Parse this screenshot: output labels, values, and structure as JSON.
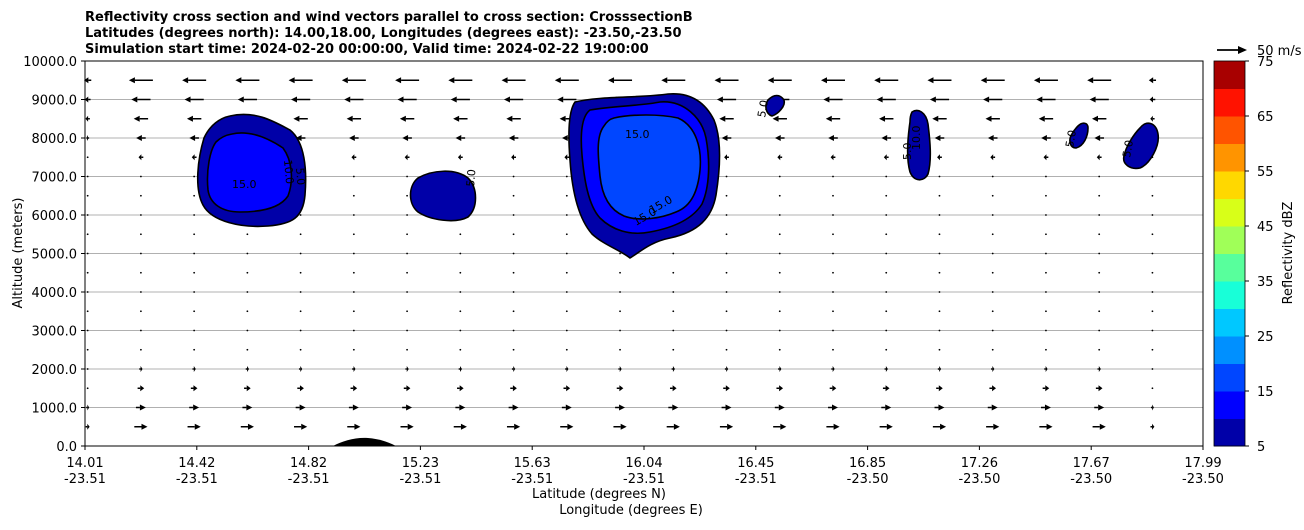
{
  "chart_data": {
    "type": "cross-section contour with wind vectors",
    "title_lines": [
      "Reflectivity cross section and wind vectors parallel to cross section: CrosssectionB",
      "Latitudes (degrees north): 14.00,18.00, Longitudes (degrees east): -23.50,-23.50",
      "Simulation start time: 2024-02-20 00:00:00, Valid time: 2024-02-22 19:00:00"
    ],
    "ylabel": "Altitude (meters)",
    "xlabel_lat": "Latitude (degrees N)",
    "xlabel_lon": "Longitude (degrees E)",
    "ylim": [
      0,
      10000
    ],
    "yticks": [
      "0.0",
      "1000.0",
      "2000.0",
      "3000.0",
      "4000.0",
      "5000.0",
      "6000.0",
      "7000.0",
      "8000.0",
      "9000.0",
      "10000.0"
    ],
    "xlim": [
      14.01,
      17.99
    ],
    "xticks_lat": [
      "14.01",
      "14.42",
      "14.82",
      "15.23",
      "15.63",
      "16.04",
      "16.45",
      "16.85",
      "17.26",
      "17.67",
      "17.99"
    ],
    "xticks_lon": [
      "-23.51",
      "-23.51",
      "-23.51",
      "-23.51",
      "-23.51",
      "-23.51",
      "-23.51",
      "-23.50",
      "-23.50",
      "-23.50",
      "-23.50"
    ],
    "grid": "horizontal",
    "wind_key_label": "50 m/s",
    "colorbar": {
      "label": "Reflectivity dBZ",
      "levels": [
        5,
        10,
        15,
        20,
        25,
        30,
        35,
        40,
        45,
        50,
        55,
        60,
        65,
        70,
        75
      ],
      "tick_labels": [
        "5",
        "15",
        "25",
        "35",
        "45",
        "55",
        "65",
        "75"
      ],
      "colors": [
        "#0000a8",
        "#0000ff",
        "#0046ff",
        "#0090ff",
        "#00c8ff",
        "#18ffd8",
        "#58ff9c",
        "#a0ff58",
        "#d8ff18",
        "#ffd800",
        "#ff9400",
        "#ff5400",
        "#ff1200",
        "#a80000"
      ]
    },
    "cells": [
      {
        "lat": 14.55,
        "alt_min": 5700,
        "alt_max": 8600,
        "max_dbz": 15,
        "labels": [
          "15.0",
          "10.0",
          "5.0"
        ]
      },
      {
        "lat": 15.3,
        "alt_min": 5800,
        "alt_max": 7100,
        "max_dbz": 10,
        "labels": [
          "5.0"
        ]
      },
      {
        "lat": 16.0,
        "alt_min": 4850,
        "alt_max": 9000,
        "max_dbz": 15,
        "labels": [
          "15.0",
          "15.0",
          "15.0"
        ]
      },
      {
        "lat": 16.47,
        "alt_min": 8450,
        "alt_max": 8900,
        "max_dbz": 10,
        "labels": [
          "5.0"
        ]
      },
      {
        "lat": 17.01,
        "alt_min": 6950,
        "alt_max": 8700,
        "max_dbz": 10,
        "labels": [
          "10.0",
          "5.0"
        ]
      },
      {
        "lat": 17.67,
        "alt_min": 7700,
        "alt_max": 8300,
        "max_dbz": 10,
        "labels": [
          "5.0"
        ]
      },
      {
        "lat": 17.86,
        "alt_min": 7250,
        "alt_max": 8400,
        "max_dbz": 10,
        "labels": [
          "5.0"
        ]
      }
    ],
    "terrain": {
      "lat_range": [
        14.87,
        15.04
      ],
      "peak_alt": 200
    }
  }
}
